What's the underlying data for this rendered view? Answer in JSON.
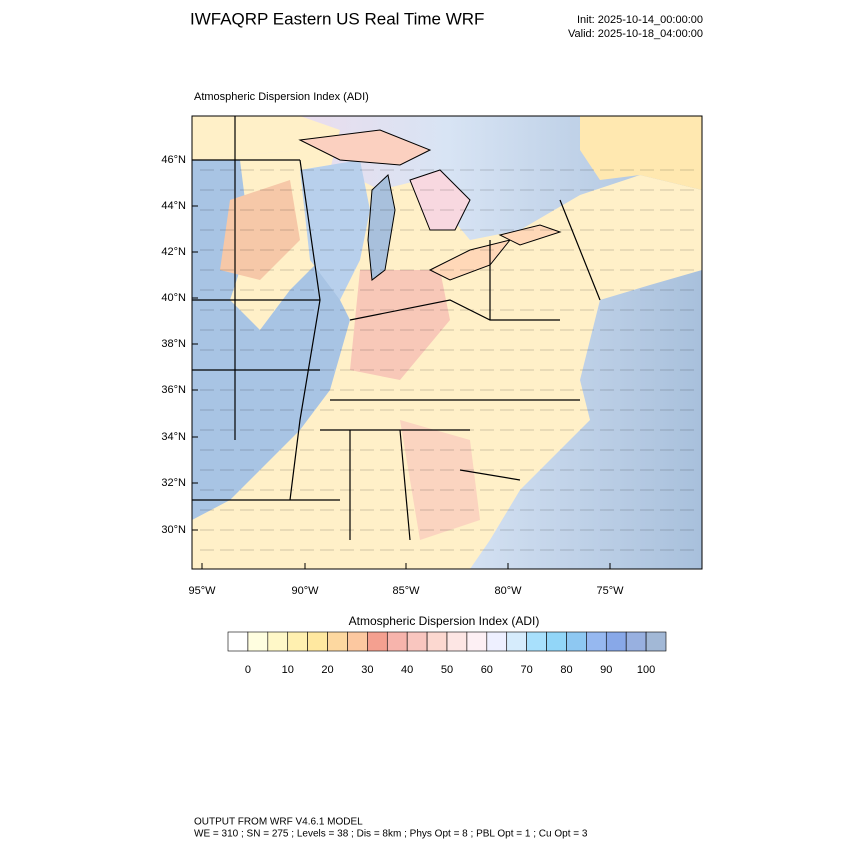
{
  "header": {
    "title": "IWFAQRP Eastern US Real Time WRF",
    "init": "Init: 2025-10-14_00:00:00",
    "valid": "Valid: 2025-10-18_04:00:00"
  },
  "map": {
    "title": "Atmospheric Dispersion Index   (ADI)",
    "lat_labels": [
      "46°N",
      "44°N",
      "42°N",
      "40°N",
      "38°N",
      "36°N",
      "34°N",
      "32°N",
      "30°N"
    ],
    "lon_labels": [
      "95°W",
      "90°W",
      "85°W",
      "80°W",
      "75°W"
    ]
  },
  "colorbar": {
    "title": "Atmospheric Dispersion Index  (ADI)",
    "colors": [
      "#ffffff",
      "#fffee0",
      "#fff8c8",
      "#fff0b0",
      "#ffe8a0",
      "#fdd8a0",
      "#fcc8a0",
      "#f4a090",
      "#f7b4ac",
      "#f9c6bf",
      "#fcd8d0",
      "#fde6e4",
      "#fdf0f4",
      "#eef0ff",
      "#d6ecfc",
      "#a8e0fc",
      "#92d6f8",
      "#8ec8f2",
      "#96b8f0",
      "#88a8e8",
      "#98b0e0",
      "#a2b8d6"
    ],
    "ticks": [
      0,
      10,
      20,
      30,
      40,
      50,
      60,
      70,
      80,
      90,
      100
    ]
  },
  "footer": {
    "line1": "OUTPUT FROM WRF V4.6.1 MODEL",
    "line2": "WE = 310 ; SN = 275 ; Levels = 38 ; Dis = 8km ; Phys Opt = 8 ; PBL Opt = 1 ; Cu Opt = 3"
  }
}
